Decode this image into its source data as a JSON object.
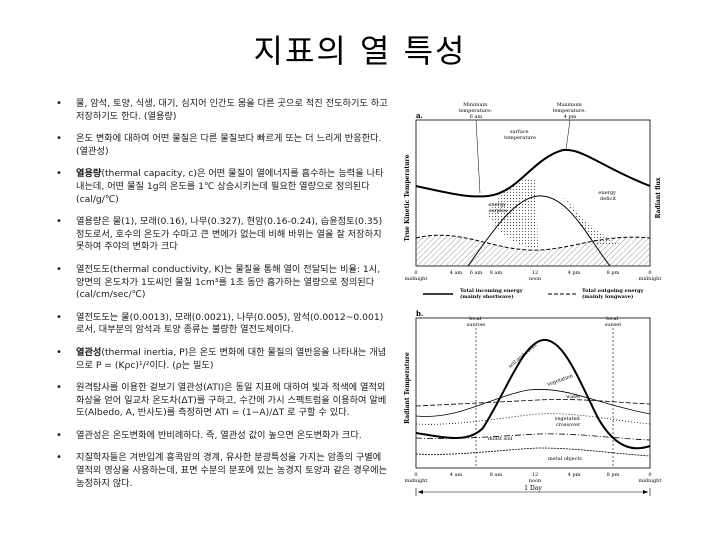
{
  "title": "지표의 열 특성",
  "bullets": [
    {
      "bold": "",
      "text": "물, 암석, 토양, 식생, 대기, 심지어 인간도 몸을 다른 곳으로 적진 전도하기도 하고 저장하기도 한다. (열용량)"
    },
    {
      "bold": "",
      "text": "온도 변화에 대하여 어떤 물질은 다른 물질보다 빠르게 또는 더 느리게 반응한다. (열관성)"
    },
    {
      "bold": "열용량",
      "text": "(thermal capacity, c)은 어떤 물질이 열에너지를 흡수하는 능력을 나타내는데, 어떤 물질 1g의 온도를 1℃ 상승시키는데 필요한 열량으로 정의된다(cal/g/℃)"
    },
    {
      "bold": "",
      "text": "열용량은 물(1), 모래(0.16), 나무(0.327), 현암(0.16-0.24), 습윤점토(0.35) 정도로서, 호수의 온도가 수마고 큰 변에가 없는데 비해 바위는 열을 잘 저장하지 못하여 주야의 변화가 크다"
    },
    {
      "bold": "",
      "text": "열전도도(thermal conductivity, K)는 물질을 통해 열이 전달되는 비율: 1시, 양면의 온도차가 1도씨인 물질 1cm³를 1초 동안 흡가하는 열량으로 정의된다(cal/cm/sec/℃)"
    },
    {
      "bold": "",
      "text": "열전도도는 물(0.0013), 모래(0.0021), 나무(0.005), 암석(0.0012~0.001)로서, 대부분의 암석과 토양 종류는 불량한 열전도체이다."
    },
    {
      "bold": "열관성",
      "text": "(thermal inertia, P)은 온도 변화에 대한 물질의 열반응을 나타내는 개념으로 P = (Kρc)¹/²이다. (ρ는 밀도)"
    },
    {
      "bold": "",
      "text": "원격탐사를 이용한 겉보기 열관성(ATI)은 동일 지표에 대하여 빛과 적색에 열적외 화상을 얻어 일교차 온도차(ΔT)를 구하고, 수간에 가시 스펙트럼을 이용하여 알베도(Albedo, A, 반사도)를 측정하면 ATI = (1−A)/ΔT 로 구할 수 있다."
    },
    {
      "bold": "",
      "text": "열관성은 온도변화에 반비례하다. 즉, 열관성 값이 높으면 온도변화가 크다."
    },
    {
      "bold": "",
      "text": "지질학자들은 겨반입계 흥콕암의 경계, 유사한 분광특성을 가지는 암종의 구별에 열적외 영상을 사용하는데, 표면 수분의 분포에 있는 농경지 토양과 같은 경우에는 농정하지 않다."
    }
  ],
  "figure_a": {
    "panel": "a.",
    "y_left": "True Kinetic Temperature",
    "y_right": "Radiant flux",
    "ann_min": [
      "Minimum",
      "temperature:",
      "6 am"
    ],
    "ann_max": [
      "Maximum",
      "temperature:",
      "4 pm"
    ],
    "ann_surface": [
      "surface",
      "temperature"
    ],
    "ann_surplus": [
      "energy",
      "surplus"
    ],
    "ann_deficit": [
      "energy",
      "deficit"
    ],
    "ticks": [
      "0",
      "4 am",
      "6 am",
      "8 am",
      "12",
      "4 pm",
      "8 pm",
      "0"
    ],
    "tick_sub": {
      "midnight": "midnight",
      "noon": "noon"
    },
    "legend_in": [
      "Total incoming energy",
      "(mainly shortwave)"
    ],
    "legend_out": [
      "Total outgoing energy",
      "(mainly longwave)"
    ]
  },
  "figure_b": {
    "panel": "b.",
    "y_left": "Radiant Temperature",
    "ann_sunrise": [
      "local",
      "sunrise"
    ],
    "ann_sunset": [
      "local",
      "sunset"
    ],
    "labels": {
      "soil": "soil and rocks",
      "vegetation": "vegetation",
      "water": "water",
      "wetland": [
        "vegetated",
        "crossover"
      ],
      "moist": "moist soil",
      "metal": "metal objects"
    },
    "ticks": [
      "0",
      "4 am",
      "8 am",
      "12",
      "4 pm",
      "8 pm",
      "0"
    ],
    "tick_sub": {
      "midnight": "midnight",
      "noon": "noon",
      "midnight2": "midnight"
    },
    "day_label": "1 Day"
  }
}
